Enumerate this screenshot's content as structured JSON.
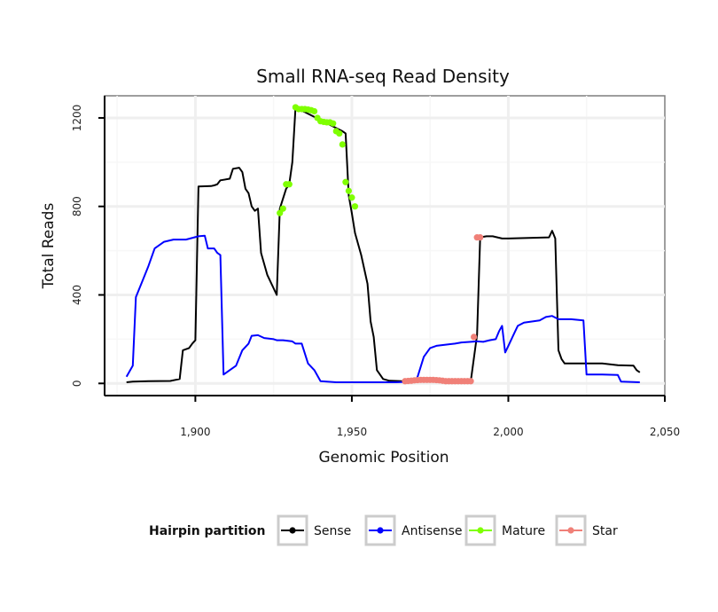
{
  "chart_data": {
    "type": "line",
    "title": "Small RNA-seq Read Density",
    "xlabel": "Genomic Position",
    "ylabel": "Total Reads",
    "xlim": [
      1871,
      2050
    ],
    "ylim": [
      -55,
      1300
    ],
    "x_ticks": [
      1900,
      1950,
      2000,
      2050
    ],
    "x_tick_labels": [
      "1,900",
      "1,950",
      "2,000",
      "2,050"
    ],
    "y_ticks": [
      0,
      400,
      800,
      1200
    ],
    "y_tick_labels": [
      "0",
      "400",
      "800",
      "1200"
    ],
    "grid": true,
    "legend": {
      "title": "Hairpin partition",
      "position": "bottom",
      "items": [
        "Sense",
        "Antisense",
        "Mature",
        "Star"
      ]
    },
    "series": [
      {
        "name": "Sense",
        "color": "#000000",
        "style": "line",
        "points": [
          [
            1878,
            5
          ],
          [
            1880,
            8
          ],
          [
            1885,
            10
          ],
          [
            1892,
            11
          ],
          [
            1895,
            20
          ],
          [
            1896,
            150
          ],
          [
            1898,
            160
          ],
          [
            1899,
            180
          ],
          [
            1900,
            195
          ],
          [
            1901,
            890
          ],
          [
            1905,
            892
          ],
          [
            1906,
            895
          ],
          [
            1907,
            900
          ],
          [
            1908,
            918
          ],
          [
            1911,
            925
          ],
          [
            1912,
            970
          ],
          [
            1914,
            975
          ],
          [
            1915,
            955
          ],
          [
            1916,
            880
          ],
          [
            1917,
            860
          ],
          [
            1918,
            800
          ],
          [
            1919,
            780
          ],
          [
            1920,
            790
          ],
          [
            1921,
            590
          ],
          [
            1923,
            490
          ],
          [
            1926,
            400
          ],
          [
            1927,
            790
          ],
          [
            1929,
            880
          ],
          [
            1930,
            900
          ],
          [
            1931,
            1000
          ],
          [
            1932,
            1248
          ],
          [
            1947,
            1140
          ],
          [
            1948,
            1130
          ],
          [
            1949,
            850
          ],
          [
            1950,
            770
          ],
          [
            1951,
            680
          ],
          [
            1953,
            580
          ],
          [
            1955,
            450
          ],
          [
            1956,
            280
          ],
          [
            1957,
            210
          ],
          [
            1958,
            60
          ],
          [
            1960,
            20
          ],
          [
            1962,
            12
          ],
          [
            1966,
            10
          ],
          [
            1968,
            10
          ],
          [
            1988,
            10
          ],
          [
            1990,
            220
          ],
          [
            1991,
            660
          ],
          [
            1993,
            665
          ],
          [
            1995,
            665
          ],
          [
            1998,
            655
          ],
          [
            2000,
            655
          ],
          [
            2013,
            660
          ],
          [
            2014,
            690
          ],
          [
            2015,
            655
          ],
          [
            2016,
            150
          ],
          [
            2017,
            110
          ],
          [
            2018,
            90
          ],
          [
            2030,
            90
          ],
          [
            2035,
            82
          ],
          [
            2040,
            80
          ],
          [
            2041,
            60
          ],
          [
            2042,
            50
          ]
        ]
      },
      {
        "name": "Antisense",
        "color": "#0000ff",
        "style": "line",
        "points": [
          [
            1878,
            30
          ],
          [
            1880,
            80
          ],
          [
            1881,
            390
          ],
          [
            1883,
            460
          ],
          [
            1885,
            530
          ],
          [
            1887,
            610
          ],
          [
            1890,
            640
          ],
          [
            1893,
            650
          ],
          [
            1897,
            650
          ],
          [
            1901,
            665
          ],
          [
            1903,
            668
          ],
          [
            1904,
            610
          ],
          [
            1906,
            610
          ],
          [
            1907,
            590
          ],
          [
            1908,
            580
          ],
          [
            1909,
            40
          ],
          [
            1911,
            60
          ],
          [
            1913,
            80
          ],
          [
            1915,
            150
          ],
          [
            1917,
            180
          ],
          [
            1918,
            215
          ],
          [
            1920,
            218
          ],
          [
            1922,
            205
          ],
          [
            1925,
            200
          ],
          [
            1926,
            195
          ],
          [
            1928,
            195
          ],
          [
            1931,
            190
          ],
          [
            1932,
            180
          ],
          [
            1934,
            180
          ],
          [
            1936,
            90
          ],
          [
            1938,
            60
          ],
          [
            1940,
            10
          ],
          [
            1945,
            5
          ],
          [
            1964,
            5
          ],
          [
            1970,
            8
          ],
          [
            1971,
            30
          ],
          [
            1973,
            120
          ],
          [
            1975,
            160
          ],
          [
            1977,
            170
          ],
          [
            1980,
            175
          ],
          [
            1983,
            180
          ],
          [
            1985,
            185
          ],
          [
            1990,
            190
          ],
          [
            1992,
            188
          ],
          [
            1994,
            195
          ],
          [
            1996,
            200
          ],
          [
            1997,
            235
          ],
          [
            1998,
            260
          ],
          [
            1999,
            140
          ],
          [
            2000,
            170
          ],
          [
            2001,
            200
          ],
          [
            2002,
            230
          ],
          [
            2003,
            260
          ],
          [
            2005,
            275
          ],
          [
            2010,
            285
          ],
          [
            2012,
            300
          ],
          [
            2014,
            305
          ],
          [
            2016,
            290
          ],
          [
            2020,
            290
          ],
          [
            2024,
            285
          ],
          [
            2025,
            40
          ],
          [
            2030,
            40
          ],
          [
            2035,
            38
          ],
          [
            2036,
            8
          ],
          [
            2042,
            5
          ]
        ]
      },
      {
        "name": "Mature",
        "color": "#7fff00",
        "style": "points",
        "points": [
          [
            1927,
            770
          ],
          [
            1928,
            790
          ],
          [
            1929,
            900
          ],
          [
            1930,
            900
          ],
          [
            1932,
            1248
          ],
          [
            1933,
            1240
          ],
          [
            1934,
            1240
          ],
          [
            1935,
            1240
          ],
          [
            1936,
            1238
          ],
          [
            1937,
            1235
          ],
          [
            1938,
            1230
          ],
          [
            1939,
            1200
          ],
          [
            1940,
            1185
          ],
          [
            1941,
            1182
          ],
          [
            1942,
            1180
          ],
          [
            1943,
            1180
          ],
          [
            1944,
            1175
          ],
          [
            1945,
            1140
          ],
          [
            1946,
            1130
          ],
          [
            1947,
            1080
          ],
          [
            1948,
            910
          ],
          [
            1949,
            870
          ],
          [
            1950,
            840
          ],
          [
            1951,
            800
          ]
        ]
      },
      {
        "name": "Star",
        "color": "#f08078",
        "style": "points",
        "points": [
          [
            1967,
            10
          ],
          [
            1968,
            11
          ],
          [
            1969,
            12
          ],
          [
            1970,
            14
          ],
          [
            1971,
            15
          ],
          [
            1972,
            16
          ],
          [
            1973,
            16
          ],
          [
            1974,
            16
          ],
          [
            1975,
            16
          ],
          [
            1976,
            16
          ],
          [
            1977,
            15
          ],
          [
            1978,
            14
          ],
          [
            1979,
            12
          ],
          [
            1980,
            10
          ],
          [
            1981,
            10
          ],
          [
            1982,
            10
          ],
          [
            1983,
            10
          ],
          [
            1984,
            10
          ],
          [
            1985,
            10
          ],
          [
            1986,
            10
          ],
          [
            1987,
            10
          ],
          [
            1988,
            10
          ],
          [
            1989,
            210
          ],
          [
            1990,
            660
          ],
          [
            1991,
            660
          ]
        ]
      }
    ]
  }
}
